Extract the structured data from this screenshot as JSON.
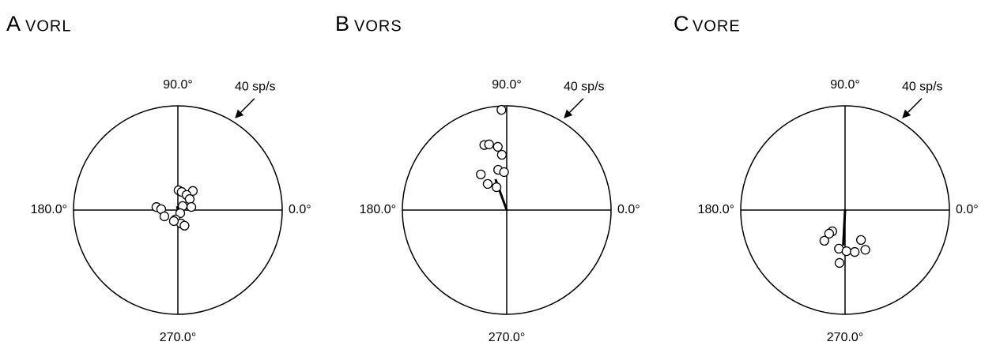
{
  "chart_data": [
    {
      "type": "polar",
      "letter": "A",
      "title": "VORL",
      "points": {
        "angle": [
          88,
          78,
          52,
          60,
          43,
          172,
          177,
          40,
          13,
          205,
          307,
          256,
          283,
          293,
          250
        ],
        "r": [
          7.6,
          7.1,
          9.3,
          6.7,
          6.2,
          8.3,
          6.4,
          2.4,
          5.3,
          5.7,
          1.5,
          3.7,
          5.3,
          6.5,
          4.5
        ]
      },
      "mean_vector": {
        "angle": 100,
        "r": 1.5
      },
      "rlim": [
        0,
        40
      ],
      "rticks": [
        {
          "value": 40,
          "label": "40 sp/s"
        }
      ],
      "thetaticks": [
        {
          "value": 90,
          "label": "90.0°"
        },
        {
          "value": 0,
          "label": "0.0°"
        },
        {
          "value": 180,
          "label": "180.0°"
        },
        {
          "value": 270,
          "label": "270.0°"
        }
      ],
      "color": "#000000"
    },
    {
      "type": "polar",
      "letter": "B",
      "title": "VORS",
      "points": {
        "angle": [
          93,
          109,
          105,
          98,
          95,
          102,
          94,
          126,
          126,
          114
        ],
        "r": [
          38.5,
          26.4,
          26.1,
          24.5,
          21.3,
          15.8,
          14.6,
          16.9,
          12.4,
          9.6
        ]
      },
      "mean_vector": {
        "angle": 110,
        "r": 12.6
      },
      "rlim": [
        0,
        40
      ],
      "rticks": [
        {
          "value": 40,
          "label": "40 sp/s"
        }
      ],
      "thetaticks": [
        {
          "value": 90,
          "label": "90.0°"
        },
        {
          "value": 0,
          "label": "0.0°"
        },
        {
          "value": 180,
          "label": "180.0°"
        },
        {
          "value": 270,
          "label": "270.0°"
        }
      ],
      "color": "#000000"
    },
    {
      "type": "polar",
      "letter": "C",
      "title": "VORE",
      "points": {
        "angle": [
          239,
          236,
          236,
          298,
          261,
          272,
          283,
          297,
          264
        ],
        "r": [
          9.5,
          10.9,
          14.2,
          13.0,
          15.0,
          15.8,
          16.5,
          17.1,
          20.4
        ]
      },
      "mean_vector": {
        "angle": 267,
        "r": 13.6
      },
      "rlim": [
        0,
        40
      ],
      "rticks": [
        {
          "value": 40,
          "label": "40 sp/s"
        }
      ],
      "thetaticks": [
        {
          "value": 90,
          "label": "90.0°"
        },
        {
          "value": 0,
          "label": "0.0°"
        },
        {
          "value": 180,
          "label": "180.0°"
        },
        {
          "value": 270,
          "label": "270.0°"
        }
      ],
      "color": "#000000"
    }
  ]
}
